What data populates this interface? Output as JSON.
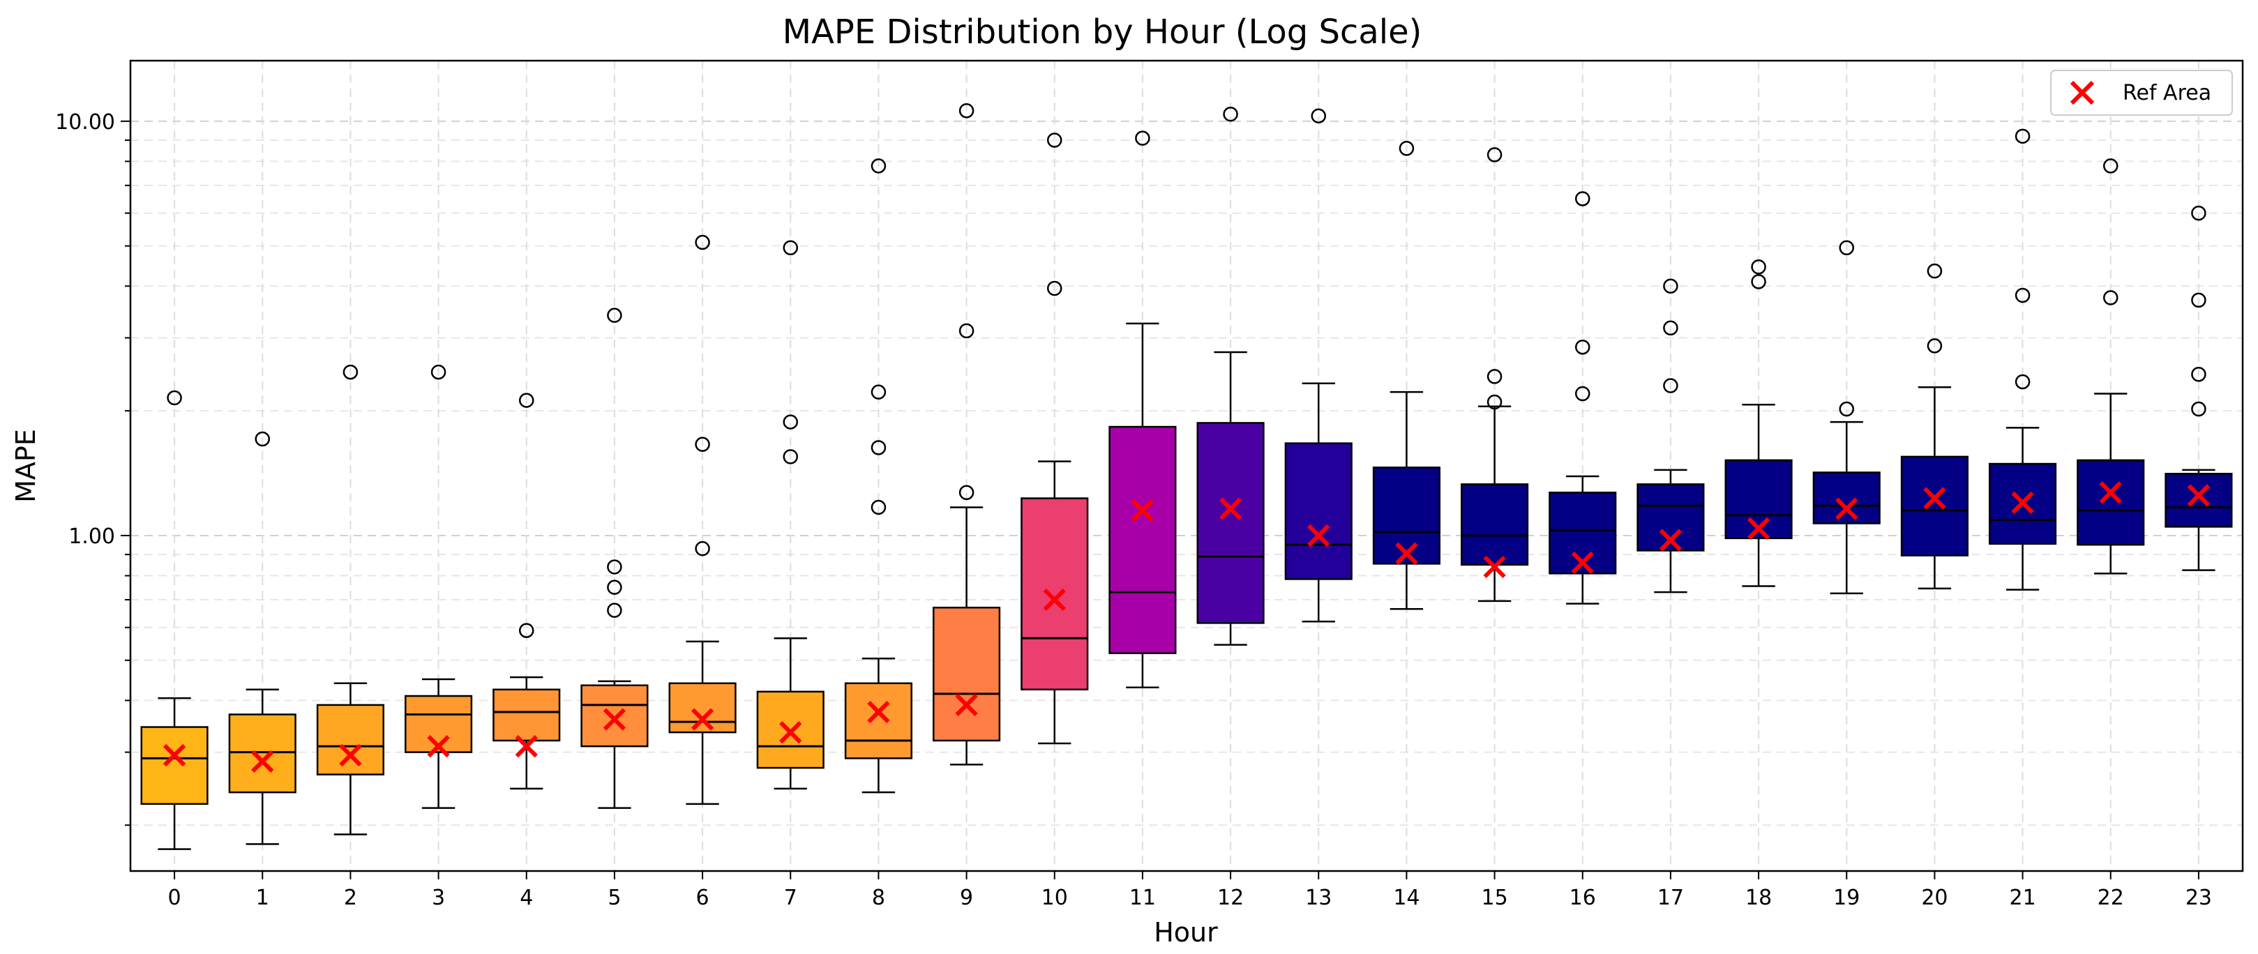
{
  "chart_data": {
    "type": "box",
    "title": "MAPE Distribution by Hour (Log Scale)",
    "xlabel": "Hour",
    "ylabel": "MAPE",
    "yscale": "log",
    "ylim": [
      0.155,
      14.0
    ],
    "y_ticks": [
      {
        "value": 1.0,
        "label": "1.00"
      },
      {
        "value": 10.0,
        "label": "10.00"
      }
    ],
    "grid": true,
    "legend": {
      "position": "top-right",
      "entries": [
        {
          "label": "Ref Area",
          "marker": "x",
          "color": "#ff0000"
        }
      ]
    },
    "ref_marker_color": "#ff0000",
    "boxes": [
      {
        "hour": "0",
        "color": "#ffb516",
        "whislo": 0.175,
        "q1": 0.225,
        "med": 0.29,
        "q3": 0.345,
        "whishi": 0.405,
        "ref": 0.295,
        "fliers": [
          2.15
        ]
      },
      {
        "hour": "1",
        "color": "#ffae1c",
        "whislo": 0.18,
        "q1": 0.24,
        "med": 0.3,
        "q3": 0.37,
        "whishi": 0.425,
        "ref": 0.285,
        "fliers": [
          1.71
        ]
      },
      {
        "hour": "2",
        "color": "#ffa722",
        "whislo": 0.19,
        "q1": 0.265,
        "med": 0.31,
        "q3": 0.39,
        "whishi": 0.44,
        "ref": 0.295,
        "fliers": [
          2.48
        ]
      },
      {
        "hour": "3",
        "color": "#ff9a30",
        "whislo": 0.22,
        "q1": 0.3,
        "med": 0.37,
        "q3": 0.41,
        "whishi": 0.45,
        "ref": 0.31,
        "fliers": [
          2.48
        ]
      },
      {
        "hour": "4",
        "color": "#ff9535",
        "whislo": 0.245,
        "q1": 0.32,
        "med": 0.375,
        "q3": 0.425,
        "whishi": 0.455,
        "ref": 0.31,
        "fliers": [
          0.59,
          2.12
        ]
      },
      {
        "hour": "5",
        "color": "#ff8f3c",
        "whislo": 0.22,
        "q1": 0.31,
        "med": 0.39,
        "q3": 0.435,
        "whishi": 0.445,
        "ref": 0.36,
        "fliers": [
          0.66,
          0.75,
          0.84,
          3.4
        ]
      },
      {
        "hour": "6",
        "color": "#ff9a30",
        "whislo": 0.225,
        "q1": 0.335,
        "med": 0.355,
        "q3": 0.44,
        "whishi": 0.555,
        "ref": 0.36,
        "fliers": [
          0.93,
          1.66,
          5.1
        ]
      },
      {
        "hour": "7",
        "color": "#ffaa1e",
        "whislo": 0.245,
        "q1": 0.275,
        "med": 0.31,
        "q3": 0.42,
        "whishi": 0.565,
        "ref": 0.335,
        "fliers": [
          1.55,
          1.88,
          4.95
        ]
      },
      {
        "hour": "8",
        "color": "#ff9b2e",
        "whislo": 0.24,
        "q1": 0.29,
        "med": 0.32,
        "q3": 0.44,
        "whishi": 0.505,
        "ref": 0.375,
        "fliers": [
          1.17,
          1.63,
          2.22,
          7.8
        ]
      },
      {
        "hour": "9",
        "color": "#ff7e45",
        "whislo": 0.28,
        "q1": 0.32,
        "med": 0.415,
        "q3": 0.67,
        "whishi": 1.17,
        "ref": 0.39,
        "fliers": [
          1.27,
          3.12,
          10.6
        ]
      },
      {
        "hour": "10",
        "color": "#ea3f6f",
        "whislo": 0.315,
        "q1": 0.425,
        "med": 0.565,
        "q3": 1.23,
        "whishi": 1.51,
        "ref": 0.7,
        "fliers": [
          3.95,
          9.0
        ]
      },
      {
        "hour": "11",
        "color": "#a800a8",
        "whislo": 0.43,
        "q1": 0.52,
        "med": 0.73,
        "q3": 1.83,
        "whishi": 3.25,
        "ref": 1.15,
        "fliers": [
          9.1
        ]
      },
      {
        "hour": "12",
        "color": "#4b00a3",
        "whislo": 0.545,
        "q1": 0.615,
        "med": 0.89,
        "q3": 1.87,
        "whishi": 2.77,
        "ref": 1.16,
        "fliers": [
          10.4
        ]
      },
      {
        "hour": "13",
        "color": "#24009a",
        "whislo": 0.62,
        "q1": 0.785,
        "med": 0.95,
        "q3": 1.67,
        "whishi": 2.33,
        "ref": 1.0,
        "fliers": [
          10.3
        ]
      },
      {
        "hour": "14",
        "color": "#030085",
        "whislo": 0.665,
        "q1": 0.855,
        "med": 1.02,
        "q3": 1.46,
        "whishi": 2.22,
        "ref": 0.905,
        "fliers": [
          8.6
        ]
      },
      {
        "hour": "15",
        "color": "#030085",
        "whislo": 0.695,
        "q1": 0.85,
        "med": 1.0,
        "q3": 1.33,
        "whishi": 2.05,
        "ref": 0.84,
        "fliers": [
          2.1,
          2.42,
          8.3
        ]
      },
      {
        "hour": "16",
        "color": "#030085",
        "whislo": 0.685,
        "q1": 0.81,
        "med": 1.03,
        "q3": 1.27,
        "whishi": 1.39,
        "ref": 0.86,
        "fliers": [
          2.2,
          2.85,
          6.5
        ]
      },
      {
        "hour": "17",
        "color": "#030085",
        "whislo": 0.73,
        "q1": 0.92,
        "med": 1.18,
        "q3": 1.33,
        "whishi": 1.44,
        "ref": 0.975,
        "fliers": [
          2.3,
          3.17,
          4.0
        ]
      },
      {
        "hour": "18",
        "color": "#030085",
        "whislo": 0.755,
        "q1": 0.985,
        "med": 1.12,
        "q3": 1.52,
        "whishi": 2.07,
        "ref": 1.04,
        "fliers": [
          4.1,
          4.45
        ]
      },
      {
        "hour": "19",
        "color": "#030085",
        "whislo": 0.725,
        "q1": 1.07,
        "med": 1.18,
        "q3": 1.42,
        "whishi": 1.88,
        "ref": 1.16,
        "fliers": [
          2.02,
          4.95
        ]
      },
      {
        "hour": "20",
        "color": "#030085",
        "whislo": 0.745,
        "q1": 0.895,
        "med": 1.15,
        "q3": 1.55,
        "whishi": 2.28,
        "ref": 1.23,
        "fliers": [
          2.87,
          4.35
        ]
      },
      {
        "hour": "21",
        "color": "#030085",
        "whislo": 0.74,
        "q1": 0.955,
        "med": 1.09,
        "q3": 1.49,
        "whishi": 1.82,
        "ref": 1.2,
        "fliers": [
          2.35,
          3.8,
          9.2
        ]
      },
      {
        "hour": "22",
        "color": "#030085",
        "whislo": 0.81,
        "q1": 0.95,
        "med": 1.15,
        "q3": 1.52,
        "whishi": 2.2,
        "ref": 1.27,
        "fliers": [
          3.75,
          7.8
        ]
      },
      {
        "hour": "23",
        "color": "#030085",
        "whislo": 0.825,
        "q1": 1.05,
        "med": 1.17,
        "q3": 1.41,
        "whishi": 1.44,
        "ref": 1.25,
        "fliers": [
          2.02,
          2.45,
          3.7,
          6.0
        ]
      }
    ]
  }
}
